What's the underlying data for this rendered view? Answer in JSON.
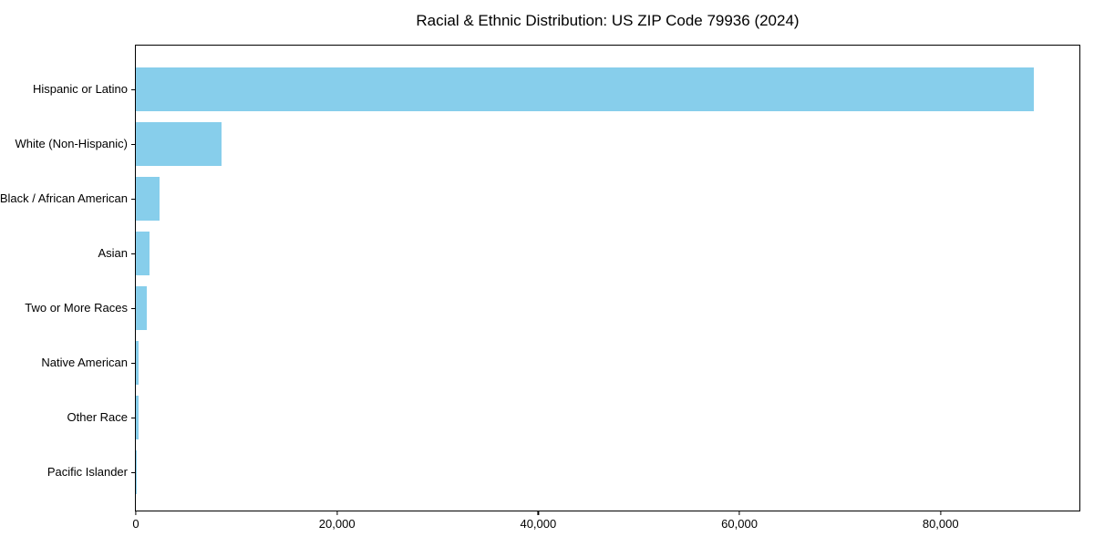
{
  "figure": {
    "background_color": "#ffffff",
    "spine_color": "#000000",
    "text_color": "#000000"
  },
  "chart_data": {
    "type": "bar",
    "orientation": "horizontal",
    "title": "Racial & Ethnic Distribution: US ZIP Code 79936 (2024)",
    "xlabel": "",
    "ylabel": "",
    "categories": [
      "Hispanic or Latino",
      "White (Non-Hispanic)",
      "Black / African American",
      "Asian",
      "Two or More Races",
      "Native American",
      "Other Race",
      "Pacific Islander"
    ],
    "values": [
      89300,
      8500,
      2400,
      1400,
      1100,
      300,
      290,
      70
    ],
    "bar_color": "#87CEEB",
    "xlim": [
      0,
      93800
    ],
    "xticks": [
      {
        "value": 0,
        "label": "0"
      },
      {
        "value": 20000,
        "label": "20,000"
      },
      {
        "value": 40000,
        "label": "40,000"
      },
      {
        "value": 60000,
        "label": "60,000"
      },
      {
        "value": 80000,
        "label": "80,000"
      }
    ],
    "grid": false,
    "legend": null,
    "value_labels_shown": false
  }
}
